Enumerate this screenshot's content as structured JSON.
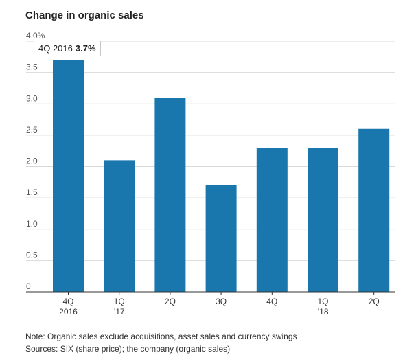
{
  "title": "Change in organic sales",
  "tooltip": {
    "label": "4Q 2016",
    "value": "3.7%"
  },
  "note": "Note: Organic sales exclude acquisitions, asset sales and currency swings",
  "sources": "Sources: SIX (share price); the company (organic sales)",
  "colors": {
    "bar": "#1a77ad",
    "grid": "#d9d9d9",
    "axis": "#333333"
  },
  "chart_data": {
    "type": "bar",
    "categories": [
      "4Q 2016",
      "1Q '17",
      "2Q",
      "3Q",
      "4Q",
      "1Q '18",
      "2Q"
    ],
    "category_labels": [
      [
        "4Q",
        "2016"
      ],
      [
        "1Q",
        "’17"
      ],
      [
        "2Q",
        ""
      ],
      [
        "3Q",
        ""
      ],
      [
        "4Q",
        ""
      ],
      [
        "1Q",
        "’18"
      ],
      [
        "2Q",
        ""
      ]
    ],
    "values": [
      3.7,
      2.1,
      3.1,
      1.7,
      2.3,
      2.3,
      2.6
    ],
    "yticks": [
      "0",
      "0.5",
      "1.0",
      "1.5",
      "2.0",
      "2.5",
      "3.0",
      "3.5",
      "4.0%"
    ],
    "ylim": [
      0,
      4
    ],
    "grid": true,
    "title": "Change in organic sales"
  }
}
